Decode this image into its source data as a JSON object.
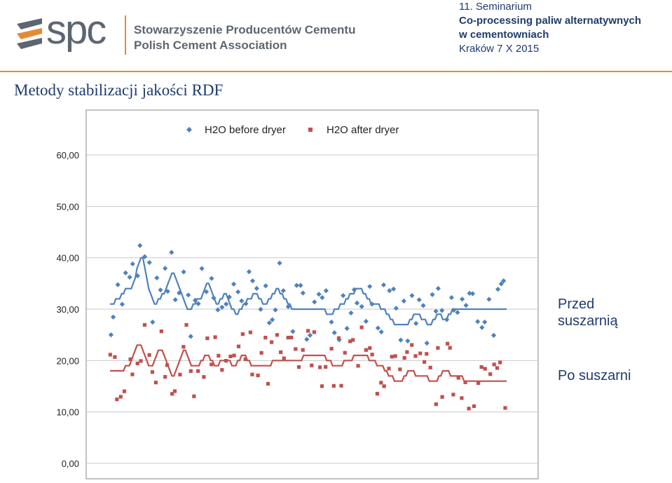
{
  "header": {
    "logo_text": "spc",
    "org_line1": "Stowarzyszenie Producentów Cementu",
    "org_line2": "Polish Cement Association",
    "seminar_line1": "11. Seminarium",
    "seminar_line2": "Co-processing paliw alternatywnych",
    "seminar_line3": "w cementowniach",
    "seminar_line4": "Kraków 7 X 2015",
    "accent_color": "#e58a35",
    "text_color": "#1f3b6e"
  },
  "slide_title": "Metody stabilizacji jakości  RDF",
  "annotations": {
    "before": "Przed suszarnią",
    "after": "Po suszarni"
  },
  "chart_data": {
    "type": "scatter",
    "title": "",
    "xlabel": "",
    "ylabel": "",
    "ylim": [
      0,
      60
    ],
    "xlim": [
      0,
      205
    ],
    "y_ticks": [
      "0,00",
      "10,00",
      "20,00",
      "30,00",
      "40,00",
      "50,00",
      "60,00"
    ],
    "grid": true,
    "legend_position": "top",
    "series": [
      {
        "name": "H2O before dryer",
        "color": "#4f81bd",
        "marker": "diamond",
        "y_mean": [
          31,
          31,
          31,
          32,
          32,
          32,
          33,
          33,
          34,
          34,
          34,
          34,
          35,
          36,
          38,
          39,
          40,
          40,
          38,
          36,
          34,
          33,
          32,
          31,
          31,
          32,
          32,
          33,
          33,
          34,
          35,
          36,
          37,
          37,
          36,
          35,
          34,
          33,
          32,
          31,
          30,
          30,
          30,
          31,
          31,
          32,
          32,
          32,
          33,
          34,
          35,
          35,
          34,
          33,
          32,
          31,
          31,
          32,
          32,
          33,
          33,
          32,
          31,
          30,
          30,
          29,
          29,
          30,
          30,
          31,
          31,
          32,
          32,
          32,
          33,
          33,
          33,
          32,
          32,
          31,
          31,
          31,
          32,
          32,
          33,
          33,
          34,
          34,
          33,
          33,
          32,
          32,
          31,
          31,
          30,
          30,
          30,
          30,
          30,
          30,
          30,
          30,
          30,
          30,
          30,
          30,
          30,
          30,
          30,
          30,
          30,
          30,
          29,
          29,
          29,
          29,
          30,
          30,
          30,
          31,
          31,
          31,
          32,
          32,
          33,
          33,
          33,
          34,
          34,
          34,
          34,
          33,
          33,
          32,
          32,
          31,
          31,
          31,
          31,
          31,
          30,
          30,
          30,
          29,
          29,
          28,
          28,
          27,
          27,
          27,
          27,
          27,
          27,
          27,
          27,
          28,
          28,
          29,
          29,
          29,
          29,
          28,
          28,
          28,
          27,
          27,
          27,
          28,
          28,
          29,
          29,
          29,
          28,
          28,
          28,
          29,
          29,
          30,
          30,
          30,
          30,
          30,
          30,
          30,
          30,
          30,
          30,
          30,
          30,
          30,
          30,
          30,
          30,
          30,
          30,
          30,
          30,
          30,
          30,
          30,
          30,
          30,
          30,
          30,
          30,
          30
        ]
      },
      {
        "name": "H2O after dryer",
        "color": "#c0504d",
        "marker": "square",
        "y_mean": [
          18,
          18,
          18,
          18,
          18,
          18,
          18,
          18,
          19,
          19,
          19,
          20,
          21,
          22,
          23,
          23,
          23,
          22,
          21,
          20,
          19,
          19,
          19,
          20,
          21,
          22,
          22,
          22,
          21,
          20,
          19,
          18,
          17,
          17,
          18,
          19,
          20,
          21,
          22,
          22,
          21,
          20,
          19,
          19,
          19,
          19,
          19,
          20,
          20,
          21,
          21,
          21,
          20,
          20,
          19,
          19,
          19,
          20,
          20,
          20,
          20,
          20,
          20,
          19,
          19,
          19,
          20,
          20,
          21,
          21,
          21,
          20,
          20,
          19,
          19,
          19,
          19,
          19,
          19,
          19,
          19,
          19,
          19,
          19,
          20,
          20,
          20,
          20,
          20,
          20,
          20,
          20,
          20,
          20,
          20,
          20,
          20,
          20,
          20,
          20,
          21,
          21,
          21,
          21,
          21,
          21,
          21,
          21,
          21,
          21,
          21,
          21,
          20,
          20,
          20,
          19,
          19,
          19,
          19,
          19,
          19,
          20,
          20,
          20,
          20,
          20,
          21,
          21,
          21,
          21,
          21,
          21,
          21,
          21,
          20,
          20,
          20,
          20,
          19,
          19,
          19,
          19,
          18,
          18,
          17,
          17,
          17,
          16,
          16,
          16,
          16,
          16,
          17,
          17,
          18,
          18,
          18,
          18,
          17,
          17,
          17,
          17,
          17,
          17,
          17,
          16,
          16,
          16,
          16,
          16,
          17,
          17,
          18,
          18,
          18,
          18,
          17,
          17,
          17,
          17,
          17,
          17,
          17,
          16,
          16,
          16,
          16,
          16,
          16,
          16,
          16,
          16,
          16,
          16,
          16,
          16,
          16,
          16,
          16,
          16,
          16,
          16,
          16,
          16,
          16,
          16
        ]
      }
    ]
  }
}
